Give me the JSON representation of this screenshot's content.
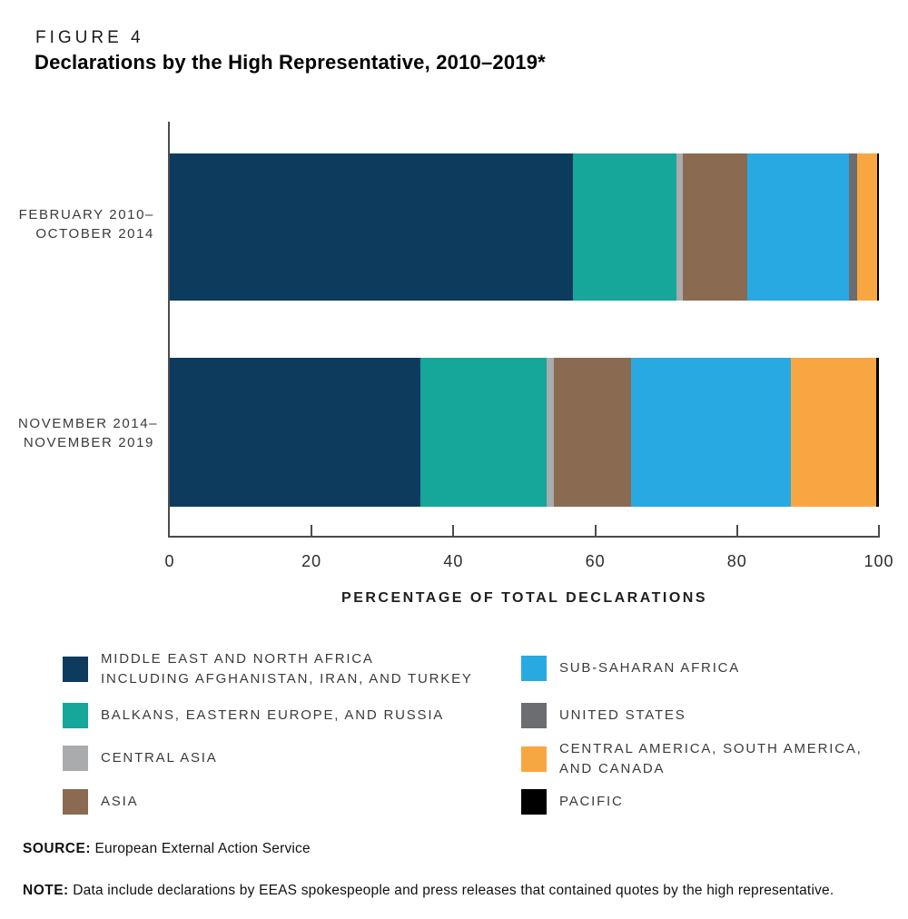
{
  "figure_label": "FIGURE 4",
  "title": "Declarations by the High Representative, 2010–2019*",
  "chart_data": {
    "type": "stacked-bar-horizontal",
    "unit": "percent of total declarations",
    "xlabel": "PERCENTAGE OF TOTAL DECLARATIONS",
    "xlim": [
      0,
      100
    ],
    "xticks": [
      0,
      20,
      40,
      60,
      80,
      100
    ],
    "grid": false,
    "segments": [
      {
        "name": "MIDDLE EAST AND NORTH AFRICA INCLUDING AFGHANISTAN, IRAN, AND TURKEY",
        "color": "#0d3b5e"
      },
      {
        "name": "BALKANS, EASTERN EUROPE, AND RUSSIA",
        "color": "#16a69a"
      },
      {
        "name": "CENTRAL ASIA",
        "color": "#a9abad"
      },
      {
        "name": "ASIA",
        "color": "#8a6b52"
      },
      {
        "name": "SUB-SAHARAN AFRICA",
        "color": "#29a9e1"
      },
      {
        "name": "UNITED STATES",
        "color": "#6b6d70"
      },
      {
        "name": "CENTRAL AMERICA, SOUTH AMERICA, AND CANADA",
        "color": "#f8a642"
      },
      {
        "name": "PACIFIC",
        "color": "#000000"
      }
    ],
    "bars": [
      {
        "label_lines": [
          "FEBRUARY 2010–",
          "OCTOBER 2014"
        ],
        "values": [
          56.8,
          14.6,
          1.0,
          9.0,
          14.4,
          1.1,
          2.8,
          0.3
        ]
      },
      {
        "label_lines": [
          "NOVEMBER 2014–",
          "NOVEMBER 2019"
        ],
        "values": [
          35.4,
          17.7,
          1.0,
          10.9,
          22.6,
          0,
          12.0,
          0.4
        ]
      }
    ]
  },
  "legend": {
    "columns": [
      {
        "items": [
          {
            "color": "#0d3b5e",
            "lines": [
              "MIDDLE EAST AND NORTH AFRICA",
              "INCLUDING AFGHANISTAN, IRAN, AND TURKEY"
            ]
          },
          {
            "color": "#16a69a",
            "lines": [
              "BALKANS, EASTERN EUROPE, AND RUSSIA"
            ]
          },
          {
            "color": "#a9abad",
            "lines": [
              "CENTRAL ASIA"
            ]
          },
          {
            "color": "#8a6b52",
            "lines": [
              "ASIA"
            ]
          }
        ]
      },
      {
        "items": [
          {
            "color": "#29a9e1",
            "lines": [
              "SUB-SAHARAN AFRICA"
            ]
          },
          {
            "color": "#6b6d70",
            "lines": [
              "UNITED STATES"
            ]
          },
          {
            "color": "#f8a642",
            "lines": [
              "CENTRAL AMERICA, SOUTH AMERICA,",
              "AND CANADA"
            ]
          },
          {
            "color": "#000000",
            "lines": [
              "PACIFIC"
            ]
          }
        ]
      }
    ]
  },
  "source": {
    "label": "SOURCE:",
    "text": "European External Action Service"
  },
  "note": {
    "label": "NOTE:",
    "text": "Data include declarations by EEAS spokespeople and press releases that contained quotes by the high representative."
  }
}
